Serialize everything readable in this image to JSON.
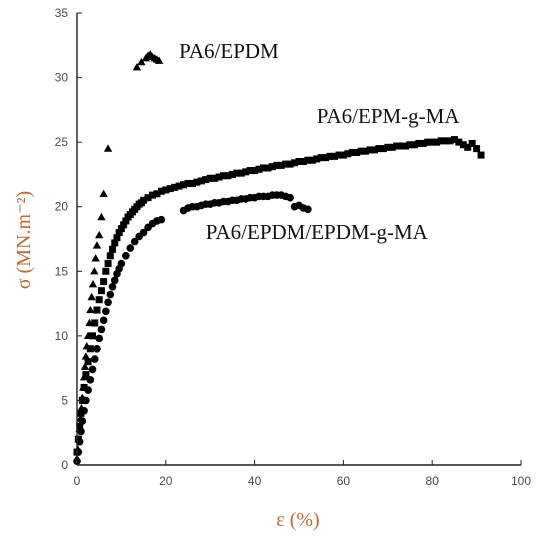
{
  "chart_data": {
    "type": "scatter",
    "xlabel": "ε (%)",
    "ylabel": "σ (MN.m⁻²)",
    "xlim": [
      0,
      100
    ],
    "ylim": [
      0,
      35
    ],
    "x_ticks": [
      0,
      20,
      40,
      60,
      80,
      100
    ],
    "y_ticks": [
      0,
      5,
      10,
      15,
      20,
      25,
      30,
      35
    ],
    "grid": false,
    "legend": "none",
    "annotations": [
      {
        "text": "PA6/EPDM",
        "x": 23,
        "y": 31.5
      },
      {
        "text": "PA6/EPM-g-MA",
        "x": 54,
        "y": 26.5
      },
      {
        "text": "PA6/EPDM/EPDM-g-MA",
        "x": 29,
        "y": 17.5
      }
    ],
    "series": [
      {
        "marker": "triangle",
        "x": [
          0,
          0.2,
          0.4,
          0.6,
          0.8,
          1.0,
          1.2,
          1.4,
          1.6,
          1.8,
          2.0,
          2.2,
          2.5,
          2.8,
          3.0,
          3.3,
          3.6,
          3.9,
          4.2,
          4.5,
          5.0,
          5.5,
          6.0,
          7.0,
          13.5,
          14.5,
          15.5,
          16.0,
          16.5,
          17.0,
          17.5,
          18.0,
          18.5
        ],
        "y": [
          0.5,
          1.2,
          2.0,
          2.8,
          3.6,
          4.4,
          5.2,
          6.0,
          6.8,
          7.6,
          8.4,
          9.2,
          10.0,
          11.0,
          12.0,
          13.0,
          14.0,
          15.0,
          16.0,
          17.0,
          17.8,
          19.2,
          21.0,
          24.5,
          30.8,
          31.2,
          31.5,
          31.7,
          31.8,
          31.6,
          31.5,
          31.4,
          31.3
        ]
      },
      {
        "marker": "square",
        "x": [
          0,
          0.3,
          0.6,
          0.9,
          1.2,
          1.6,
          2.0,
          2.5,
          3.0,
          3.5,
          4.0,
          4.5,
          5.0,
          5.5,
          6.0,
          6.5,
          7.0,
          7.5,
          8.0,
          8.5,
          9.0,
          9.5,
          10.0,
          10.5,
          11.0,
          11.5,
          12.0,
          12.5,
          13.0,
          13.5,
          14.0,
          14.5,
          15.0,
          16.0,
          17.0,
          18.0,
          19.0,
          20.0,
          21.0,
          22.0,
          23.0,
          24.0,
          25.0,
          26.0,
          27.0,
          28.0,
          29.0,
          30.0,
          31.0,
          32.0,
          33.0,
          34.0,
          35.0,
          36.0,
          37.0,
          38.0,
          39.0,
          40.0,
          41.0,
          42.0,
          43.0,
          44.0,
          45.0,
          46.0,
          47.0,
          48.0,
          49.0,
          50.0,
          51.0,
          52.0,
          53.0,
          54.0,
          55.0,
          56.0,
          57.0,
          58.0,
          59.0,
          60.0,
          61.0,
          62.0,
          63.0,
          64.0,
          65.0,
          66.0,
          67.0,
          68.0,
          69.0,
          70.0,
          71.0,
          72.0,
          73.0,
          74.0,
          75.0,
          76.0,
          77.0,
          78.0,
          79.0,
          80.0,
          81.0,
          82.0,
          83.0,
          84.0,
          85.0,
          86.0,
          87.0,
          88.0,
          89.0,
          90.0,
          91.0
        ],
        "y": [
          1.0,
          2.0,
          3.0,
          4.0,
          5.0,
          6.0,
          7.0,
          8.0,
          9.0,
          10.0,
          11.0,
          12.0,
          12.8,
          13.5,
          14.2,
          15.0,
          15.6,
          16.2,
          16.7,
          17.2,
          17.6,
          18.0,
          18.3,
          18.6,
          18.9,
          19.2,
          19.4,
          19.6,
          19.8,
          20.0,
          20.2,
          20.3,
          20.5,
          20.7,
          20.9,
          21.0,
          21.2,
          21.3,
          21.4,
          21.5,
          21.6,
          21.7,
          21.8,
          21.8,
          21.9,
          22.0,
          22.1,
          22.2,
          22.2,
          22.3,
          22.4,
          22.4,
          22.5,
          22.6,
          22.6,
          22.7,
          22.8,
          22.8,
          22.9,
          23.0,
          23.0,
          23.1,
          23.2,
          23.2,
          23.3,
          23.3,
          23.4,
          23.5,
          23.5,
          23.6,
          23.6,
          23.7,
          23.8,
          23.8,
          23.9,
          23.9,
          24.0,
          24.0,
          24.1,
          24.2,
          24.2,
          24.3,
          24.3,
          24.4,
          24.4,
          24.5,
          24.5,
          24.6,
          24.6,
          24.7,
          24.7,
          24.7,
          24.8,
          24.8,
          24.9,
          24.9,
          25.0,
          25.0,
          25.0,
          25.1,
          25.1,
          25.1,
          25.2,
          25.0,
          24.8,
          24.6,
          24.9,
          24.5,
          24.0
        ]
      },
      {
        "marker": "circle",
        "x": [
          0,
          0.3,
          0.6,
          0.9,
          1.2,
          1.6,
          2.0,
          2.5,
          3.0,
          3.5,
          4.0,
          4.5,
          5.0,
          5.5,
          6.0,
          6.5,
          7.0,
          7.5,
          8.0,
          8.5,
          9.0,
          9.5,
          10.0,
          11.0,
          12.0,
          13.0,
          14.0,
          15.0,
          16.0,
          17.0,
          18.0,
          19.0,
          24.0,
          25.0,
          26.0,
          27.0,
          28.0,
          29.0,
          30.0,
          31.0,
          32.0,
          33.0,
          34.0,
          35.0,
          36.0,
          37.0,
          38.0,
          39.0,
          40.0,
          41.0,
          42.0,
          43.0,
          44.0,
          45.0,
          46.0,
          47.0,
          48.0,
          49.0,
          50.0,
          51.0,
          52.0
        ],
        "y": [
          0.3,
          1.0,
          1.8,
          2.6,
          3.4,
          4.2,
          5.0,
          5.8,
          6.6,
          7.4,
          8.2,
          9.0,
          9.8,
          10.5,
          11.2,
          11.9,
          12.6,
          13.2,
          13.8,
          14.3,
          14.8,
          15.2,
          15.6,
          16.2,
          16.8,
          17.3,
          17.7,
          18.0,
          18.4,
          18.7,
          18.9,
          19.0,
          19.7,
          19.9,
          20.0,
          20.0,
          20.1,
          20.2,
          20.2,
          20.3,
          20.3,
          20.4,
          20.4,
          20.5,
          20.5,
          20.6,
          20.6,
          20.7,
          20.7,
          20.8,
          20.8,
          20.8,
          20.9,
          20.9,
          20.9,
          20.8,
          20.7,
          20.0,
          20.1,
          19.9,
          19.8
        ]
      }
    ]
  }
}
